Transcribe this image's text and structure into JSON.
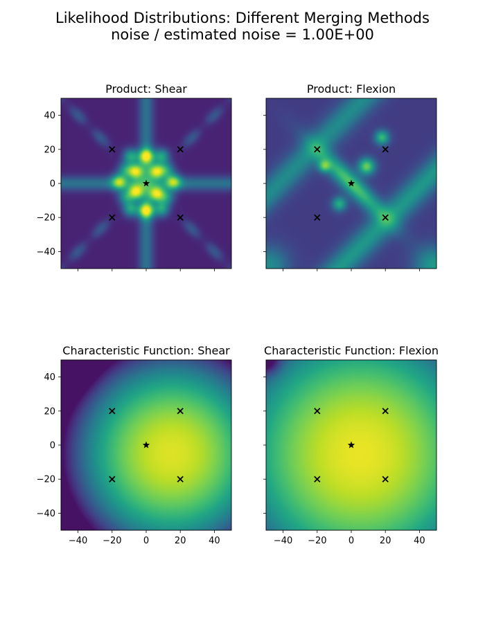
{
  "figure": {
    "title_line1": "Likelihood Distributions: Different Merging Methods",
    "title_line2": "noise / estimated noise = 1.00E+00"
  },
  "chart_data": [
    {
      "type": "heatmap",
      "title": "Product: Shear",
      "xlim": [
        -50,
        50
      ],
      "ylim": [
        -50,
        50
      ],
      "x_ticks": [
        -40,
        -20,
        0,
        20,
        40
      ],
      "y_ticks": [
        -40,
        -20,
        0,
        20,
        40
      ],
      "show_x_ticklabels": false,
      "show_y_ticklabels": true,
      "colormap": "viridis",
      "markers": [
        {
          "symbol": "star",
          "x": 0,
          "y": 0
        },
        {
          "symbol": "x",
          "x": -20,
          "y": 20
        },
        {
          "symbol": "x",
          "x": 20,
          "y": 20
        },
        {
          "symbol": "x",
          "x": -20,
          "y": -20
        },
        {
          "symbol": "x",
          "x": 20,
          "y": -20
        }
      ]
    },
    {
      "type": "heatmap",
      "title": "Product: Flexion",
      "xlim": [
        -50,
        50
      ],
      "ylim": [
        -50,
        50
      ],
      "x_ticks": [
        -40,
        -20,
        0,
        20,
        40
      ],
      "y_ticks": [
        -40,
        -20,
        0,
        20,
        40
      ],
      "show_x_ticklabels": false,
      "show_y_ticklabels": false,
      "colormap": "viridis",
      "markers": [
        {
          "symbol": "star",
          "x": 0,
          "y": 0
        },
        {
          "symbol": "x",
          "x": -20,
          "y": 20
        },
        {
          "symbol": "x",
          "x": 20,
          "y": 20
        },
        {
          "symbol": "x",
          "x": -20,
          "y": -20
        },
        {
          "symbol": "x",
          "x": 20,
          "y": -20
        }
      ]
    },
    {
      "type": "heatmap",
      "title": "Characteristic Function: Shear",
      "xlim": [
        -50,
        50
      ],
      "ylim": [
        -50,
        50
      ],
      "x_ticks": [
        -40,
        -20,
        0,
        20,
        40
      ],
      "y_ticks": [
        -40,
        -20,
        0,
        20,
        40
      ],
      "show_x_ticklabels": true,
      "show_y_ticklabels": true,
      "colormap": "viridis",
      "markers": [
        {
          "symbol": "star",
          "x": 0,
          "y": 0
        },
        {
          "symbol": "x",
          "x": -20,
          "y": 20
        },
        {
          "symbol": "x",
          "x": 20,
          "y": 20
        },
        {
          "symbol": "x",
          "x": -20,
          "y": -20
        },
        {
          "symbol": "x",
          "x": 20,
          "y": -20
        }
      ]
    },
    {
      "type": "heatmap",
      "title": "Characteristic Function: Flexion",
      "xlim": [
        -50,
        50
      ],
      "ylim": [
        -50,
        50
      ],
      "x_ticks": [
        -40,
        -20,
        0,
        20,
        40
      ],
      "y_ticks": [
        -40,
        -20,
        0,
        20,
        40
      ],
      "show_x_ticklabels": true,
      "show_y_ticklabels": false,
      "colormap": "viridis",
      "markers": [
        {
          "symbol": "star",
          "x": 0,
          "y": 0
        },
        {
          "symbol": "x",
          "x": -20,
          "y": 20
        },
        {
          "symbol": "x",
          "x": 20,
          "y": 20
        },
        {
          "symbol": "x",
          "x": -20,
          "y": -20
        },
        {
          "symbol": "x",
          "x": 20,
          "y": -20
        }
      ]
    }
  ]
}
